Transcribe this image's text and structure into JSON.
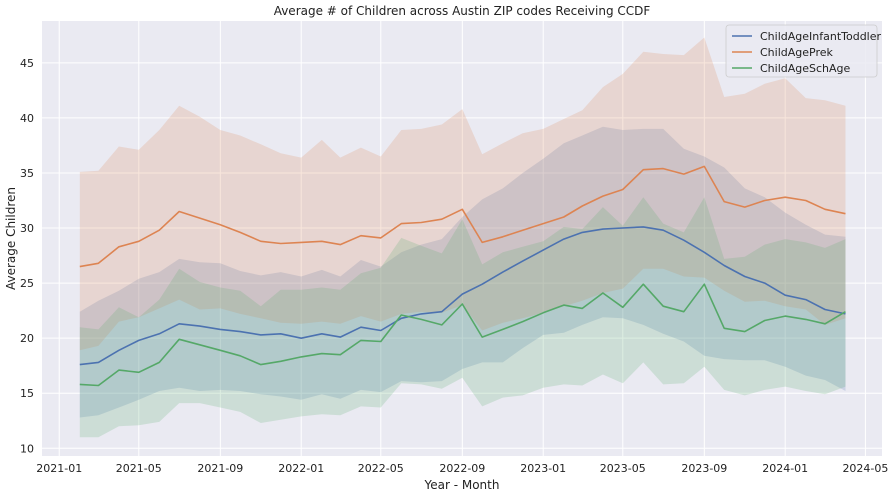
{
  "chart_data": {
    "type": "line",
    "title": "Average # of Children across Austin ZIP codes Receiving CCDF",
    "xlabel": "Year - Month",
    "ylabel": "Average Children",
    "x_ticks": [
      "2021-01",
      "2021-05",
      "2021-09",
      "2022-01",
      "2022-05",
      "2022-09",
      "2023-01",
      "2023-05",
      "2023-09",
      "2024-01",
      "2024-05"
    ],
    "y_ticks": [
      10,
      15,
      20,
      25,
      30,
      35,
      40,
      45
    ],
    "xlim": [
      "2020-12-06",
      "2024-05-26"
    ],
    "ylim": [
      9.3,
      48.8
    ],
    "grid": true,
    "legend_position": "upper right",
    "x": [
      "2021-02",
      "2021-03",
      "2021-04",
      "2021-05",
      "2021-06",
      "2021-07",
      "2021-08",
      "2021-09",
      "2021-10",
      "2021-11",
      "2021-12",
      "2022-01",
      "2022-02",
      "2022-03",
      "2022-04",
      "2022-05",
      "2022-06",
      "2022-07",
      "2022-08",
      "2022-09",
      "2022-10",
      "2022-11",
      "2022-12",
      "2023-01",
      "2023-02",
      "2023-03",
      "2023-04",
      "2023-05",
      "2023-06",
      "2023-07",
      "2023-08",
      "2023-09",
      "2023-10",
      "2023-11",
      "2023-12",
      "2024-01",
      "2024-02",
      "2024-03",
      "2024-04"
    ],
    "series": [
      {
        "name": "ChildAgeInfantToddler",
        "color": "#4c72b0",
        "values": [
          17.6,
          17.8,
          18.9,
          19.8,
          20.4,
          21.3,
          21.1,
          20.8,
          20.6,
          20.3,
          20.4,
          20.0,
          20.4,
          20.1,
          21.0,
          20.7,
          21.8,
          22.2,
          22.4,
          24.0,
          24.9,
          26.0,
          27.0,
          28.0,
          29.0,
          29.6,
          29.9,
          30.0,
          30.1,
          29.8,
          28.9,
          27.8,
          26.6,
          25.6,
          25.0,
          23.9,
          23.5,
          22.6,
          22.2
        ],
        "ci_low": [
          12.8,
          13.0,
          13.7,
          14.4,
          15.2,
          15.5,
          15.2,
          15.3,
          15.2,
          14.9,
          14.7,
          14.4,
          14.9,
          14.5,
          15.3,
          15.1,
          16.1,
          16.0,
          16.1,
          17.2,
          17.8,
          17.8,
          19.1,
          20.3,
          20.5,
          21.2,
          21.9,
          21.8,
          21.2,
          20.4,
          19.7,
          18.4,
          18.1,
          18.0,
          18.0,
          17.4,
          16.6,
          16.2,
          15.2
        ],
        "ci_high": [
          22.4,
          23.4,
          24.3,
          25.4,
          26.0,
          27.2,
          26.9,
          26.8,
          26.1,
          25.7,
          26.0,
          25.6,
          26.2,
          25.6,
          27.1,
          26.5,
          27.8,
          28.5,
          29.0,
          31.0,
          32.6,
          33.6,
          35.0,
          36.3,
          37.7,
          38.4,
          39.2,
          38.9,
          39.0,
          39.0,
          37.2,
          36.5,
          35.5,
          33.6,
          32.8,
          31.4,
          30.3,
          29.4,
          29.2
        ]
      },
      {
        "name": "ChildAgePrek",
        "color": "#dd8452",
        "values": [
          26.5,
          26.8,
          28.3,
          28.8,
          29.8,
          31.5,
          30.9,
          30.3,
          29.6,
          28.8,
          28.6,
          28.7,
          28.8,
          28.5,
          29.3,
          29.1,
          30.4,
          30.5,
          30.8,
          31.7,
          28.7,
          29.2,
          29.8,
          30.4,
          31.0,
          32.0,
          32.9,
          33.5,
          35.3,
          35.4,
          34.9,
          35.6,
          32.4,
          31.9,
          32.5,
          32.8,
          32.5,
          31.7,
          31.3
        ],
        "ci_low": [
          18.9,
          19.3,
          21.5,
          21.9,
          22.7,
          23.5,
          22.6,
          22.7,
          22.2,
          21.8,
          21.4,
          21.3,
          21.5,
          21.3,
          22.0,
          21.5,
          22.2,
          22.4,
          22.3,
          23.0,
          20.7,
          21.4,
          21.8,
          22.3,
          22.9,
          23.4,
          24.1,
          24.5,
          26.3,
          26.3,
          25.6,
          25.5,
          24.3,
          23.3,
          23.4,
          22.9,
          22.6,
          21.2,
          21.8
        ],
        "ci_high": [
          35.1,
          35.2,
          37.4,
          37.1,
          38.9,
          41.1,
          40.1,
          38.9,
          38.4,
          37.6,
          36.8,
          36.4,
          38.0,
          36.4,
          37.3,
          36.5,
          38.9,
          39.0,
          39.4,
          40.8,
          36.7,
          37.7,
          38.6,
          39.0,
          39.9,
          40.7,
          42.8,
          44.0,
          46.0,
          45.8,
          45.7,
          47.3,
          41.9,
          42.2,
          43.1,
          43.6,
          41.8,
          41.6,
          41.1
        ]
      },
      {
        "name": "ChildAgeSchAge",
        "color": "#55a868",
        "values": [
          15.8,
          15.7,
          17.1,
          16.9,
          17.8,
          19.9,
          19.4,
          18.9,
          18.4,
          17.6,
          17.9,
          18.3,
          18.6,
          18.5,
          19.8,
          19.7,
          22.1,
          21.7,
          21.2,
          23.1,
          20.1,
          20.8,
          21.5,
          22.3,
          23.0,
          22.7,
          24.1,
          22.8,
          24.9,
          22.9,
          22.4,
          24.9,
          20.9,
          20.6,
          21.6,
          22.0,
          21.7,
          21.3,
          22.4
        ],
        "ci_low": [
          11.0,
          11.0,
          12.0,
          12.1,
          12.4,
          14.1,
          14.1,
          13.7,
          13.3,
          12.3,
          12.6,
          12.9,
          13.1,
          13.0,
          13.8,
          13.7,
          15.9,
          15.8,
          15.4,
          16.4,
          13.8,
          14.6,
          14.8,
          15.5,
          15.8,
          15.7,
          16.7,
          15.9,
          17.8,
          15.8,
          15.9,
          17.4,
          15.3,
          14.8,
          15.3,
          15.6,
          15.2,
          14.9,
          15.6
        ],
        "ci_high": [
          21.0,
          20.8,
          22.8,
          21.9,
          23.5,
          26.3,
          25.1,
          24.6,
          24.3,
          22.9,
          24.4,
          24.4,
          24.6,
          24.4,
          25.9,
          26.4,
          29.1,
          28.4,
          27.7,
          30.8,
          26.7,
          27.8,
          28.3,
          28.8,
          30.1,
          29.9,
          31.9,
          30.2,
          32.8,
          30.4,
          29.6,
          32.8,
          27.2,
          27.4,
          28.5,
          29.0,
          28.7,
          28.2,
          29.0
        ]
      }
    ]
  }
}
